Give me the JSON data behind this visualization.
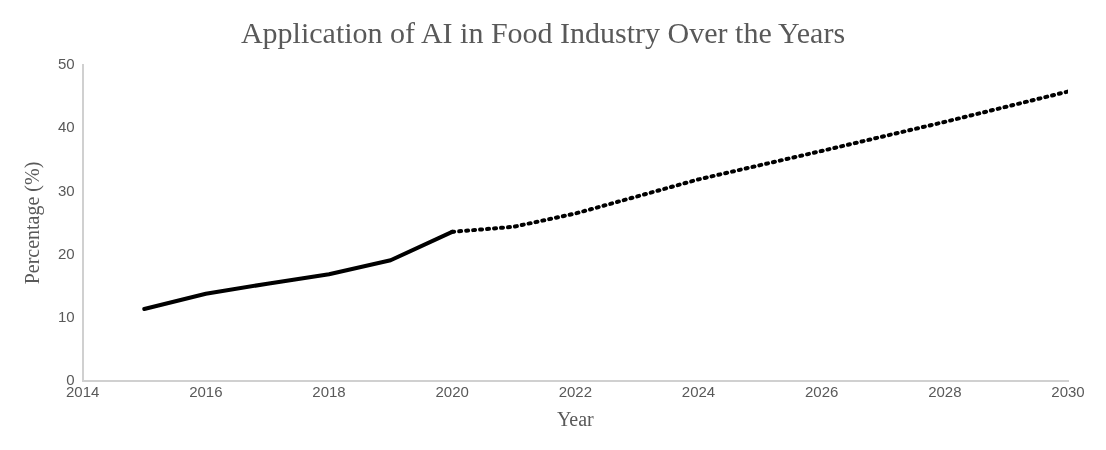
{
  "chart_data": {
    "type": "line",
    "title": "Application of AI in Food Industry Over the Years",
    "xlabel": "Year",
    "ylabel": "Percentage (%)",
    "series": [
      {
        "color": "#000000",
        "line_style": "solid",
        "x": [
          2015,
          2016,
          2017,
          2018,
          2019,
          2020
        ],
        "values": [
          11.4,
          13.8,
          15.4,
          16.9,
          19.1,
          23.6
        ]
      },
      {
        "color": "#000000",
        "line_style": "dotted",
        "x": [
          2020,
          2021,
          2022,
          2024,
          2026,
          2028,
          2030
        ],
        "values": [
          23.6,
          24.4,
          26.5,
          31.9,
          36.4,
          41,
          45.8
        ]
      }
    ],
    "xlim": [
      2014,
      2030
    ],
    "xticks": [
      2014,
      2016,
      2018,
      2020,
      2022,
      2024,
      2026,
      2028,
      2030
    ],
    "ylim": [
      0,
      50
    ],
    "yticks": [
      0,
      10,
      20,
      30,
      40,
      50
    ],
    "grid": false,
    "legend": false,
    "marker": "none"
  }
}
